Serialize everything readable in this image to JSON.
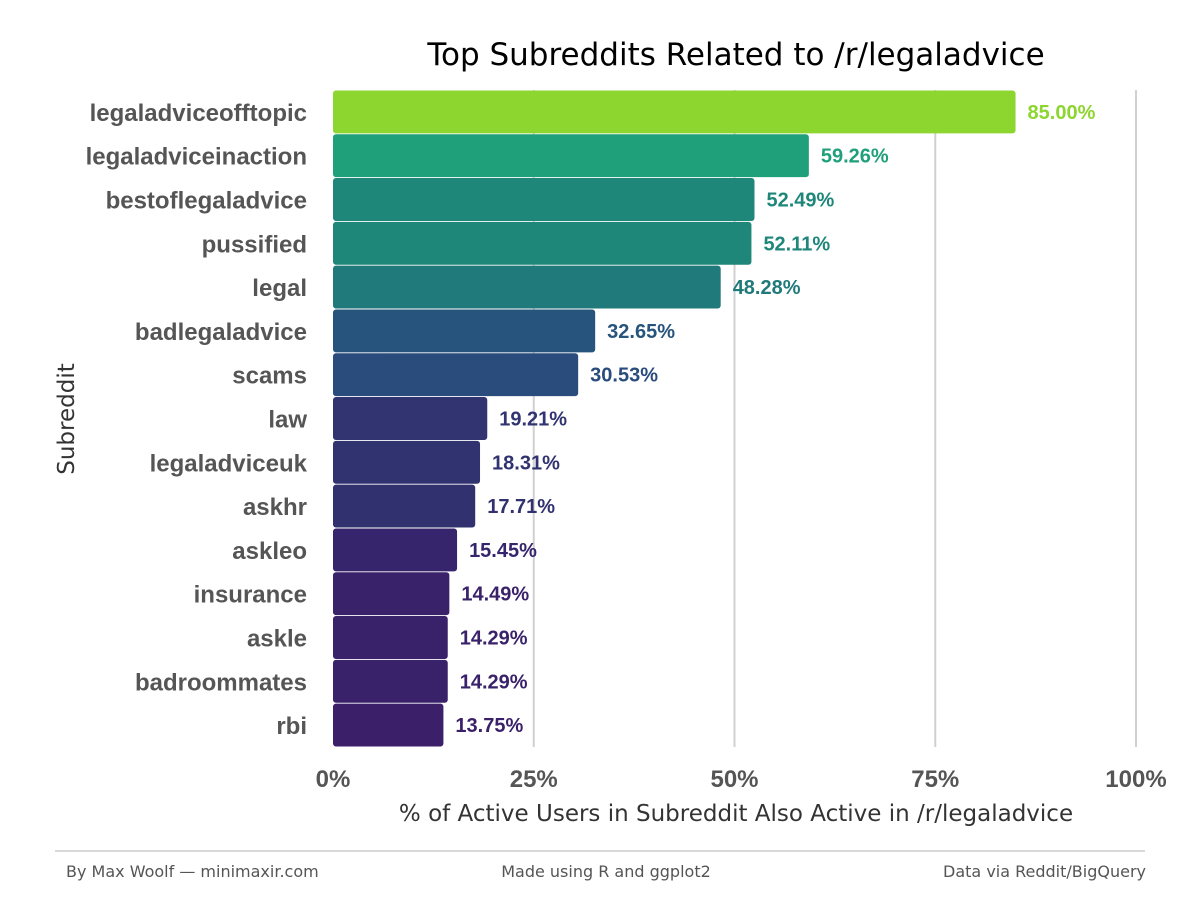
{
  "chart_data": {
    "type": "bar",
    "orientation": "horizontal",
    "title": "Top Subreddits Related to /r/legaladvice",
    "xlabel": "% of Active Users in Subreddit Also Active in /r/legaladvice",
    "ylabel": "Subreddit",
    "xlim": [
      0,
      100
    ],
    "x_ticks": [
      "0%",
      "25%",
      "50%",
      "75%",
      "100%"
    ],
    "grid": "vertical",
    "categories": [
      "legaladviceofftopic",
      "legaladviceinaction",
      "bestoflegaladvice",
      "pussified",
      "legal",
      "badlegaladvice",
      "scams",
      "law",
      "legaladviceuk",
      "askhr",
      "askleo",
      "insurance",
      "askle",
      "badroommates",
      "rbi"
    ],
    "values": [
      85.0,
      59.26,
      52.49,
      52.11,
      48.28,
      32.65,
      30.53,
      19.21,
      18.31,
      17.71,
      15.45,
      14.49,
      14.29,
      14.29,
      13.75
    ],
    "value_labels": [
      "85.00%",
      "59.26%",
      "52.49%",
      "52.11%",
      "48.28%",
      "32.65%",
      "30.53%",
      "19.21%",
      "18.31%",
      "17.71%",
      "15.45%",
      "14.49%",
      "14.29%",
      "14.29%",
      "13.75%"
    ],
    "colors": [
      "#8dd52f",
      "#20a07a",
      "#1f877a",
      "#1f867a",
      "#20797a",
      "#27547c",
      "#2a4c7c",
      "#323471",
      "#313270",
      "#31316f",
      "#36256c",
      "#3a226a",
      "#3a226a",
      "#3a226a",
      "#3b1f69"
    ]
  },
  "footer": {
    "left": "By Max Woolf — minimaxir.com",
    "center": "Made using R and ggplot2",
    "right": "Data via Reddit/BigQuery"
  }
}
